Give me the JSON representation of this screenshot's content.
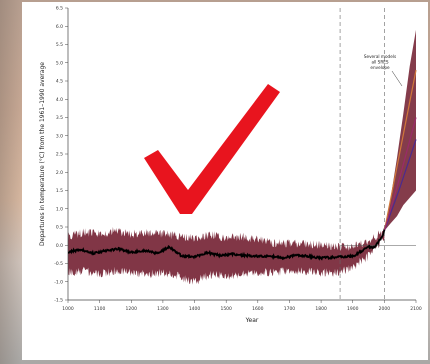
{
  "chart_data": {
    "type": "area",
    "title": "",
    "xlabel": "Year",
    "ylabel": "Departures in temperature (°C) from the 1961–1990 average",
    "xlim": [
      1000,
      2100
    ],
    "ylim": [
      -1.5,
      6.5
    ],
    "grid": false,
    "x_ticks": [
      1000,
      1100,
      1200,
      1300,
      1400,
      1500,
      1600,
      1700,
      1800,
      1900,
      2000,
      2100
    ],
    "y_ticks": [
      -1.5,
      -1.0,
      -0.5,
      0.0,
      0.5,
      1.0,
      1.5,
      2.0,
      2.5,
      3.0,
      3.5,
      4.0,
      4.5,
      5.0,
      5.5,
      6.0,
      6.5
    ],
    "reference_lines": {
      "zero_line": 0.0,
      "vertical_years": [
        1860,
        2000
      ]
    },
    "series": [
      {
        "role": "reconstruction-mean",
        "color": "#000000",
        "x": [
          1000,
          1040,
          1080,
          1120,
          1160,
          1200,
          1240,
          1280,
          1320,
          1360,
          1400,
          1440,
          1480,
          1520,
          1560,
          1600,
          1640,
          1680,
          1720,
          1760,
          1800,
          1840,
          1870,
          1900,
          1930,
          1950,
          1970,
          1990,
          2000
        ],
        "y": [
          -0.18,
          -0.12,
          -0.22,
          -0.15,
          -0.1,
          -0.2,
          -0.14,
          -0.22,
          -0.05,
          -0.3,
          -0.32,
          -0.2,
          -0.28,
          -0.24,
          -0.28,
          -0.3,
          -0.3,
          -0.35,
          -0.28,
          -0.3,
          -0.35,
          -0.33,
          -0.32,
          -0.3,
          -0.15,
          -0.05,
          -0.05,
          0.2,
          0.4
        ]
      },
      {
        "role": "uncertainty-band-upper",
        "color": "#7a2b3c",
        "x": [
          1000,
          1050,
          1100,
          1150,
          1200,
          1250,
          1300,
          1350,
          1400,
          1450,
          1500,
          1550,
          1600,
          1650,
          1700,
          1750,
          1800,
          1850,
          1900,
          1950,
          2000
        ],
        "y": [
          0.25,
          0.35,
          0.3,
          0.4,
          0.3,
          0.35,
          0.3,
          0.25,
          0.2,
          0.3,
          0.2,
          0.25,
          0.15,
          0.05,
          0.05,
          0.05,
          0.0,
          -0.05,
          -0.05,
          0.1,
          0.4
        ]
      },
      {
        "role": "uncertainty-band-lower",
        "color": "#7a2b3c",
        "x": [
          1000,
          1050,
          1100,
          1150,
          1200,
          1250,
          1300,
          1350,
          1400,
          1450,
          1500,
          1550,
          1600,
          1650,
          1700,
          1750,
          1800,
          1850,
          1900,
          1950,
          2000
        ],
        "y": [
          -0.75,
          -0.7,
          -0.8,
          -0.7,
          -0.75,
          -0.8,
          -0.75,
          -0.85,
          -1.0,
          -0.8,
          -0.85,
          -0.8,
          -0.75,
          -0.75,
          -0.7,
          -0.7,
          -0.75,
          -0.75,
          -0.6,
          -0.3,
          0.2
        ]
      },
      {
        "role": "projection-envelope",
        "color": "#7a2b3c",
        "x": [
          2000,
          2020,
          2040,
          2060,
          2080,
          2100
        ],
        "upper": [
          0.4,
          1.3,
          2.4,
          3.6,
          4.9,
          5.9
        ],
        "lower": [
          0.4,
          0.6,
          0.8,
          1.1,
          1.3,
          1.5
        ]
      },
      {
        "role": "projection",
        "color": "#d0783a",
        "x": [
          2000,
          2050,
          2100
        ],
        "y": [
          0.4,
          2.6,
          4.8
        ]
      },
      {
        "role": "projection",
        "color": "#4b2a8f",
        "x": [
          2000,
          2050,
          2100
        ],
        "y": [
          0.4,
          1.6,
          2.9
        ]
      },
      {
        "role": "projection",
        "color": "#9a2a6a",
        "x": [
          2000,
          2050,
          2100
        ],
        "y": [
          0.4,
          1.9,
          3.5
        ]
      }
    ],
    "annotations": [
      {
        "text": "Several models",
        "line": 1
      },
      {
        "text": "all SRES",
        "line": 2
      },
      {
        "text": "envelope",
        "line": 3
      }
    ]
  },
  "overlay": {
    "checkmark_color": "#e8141e"
  }
}
